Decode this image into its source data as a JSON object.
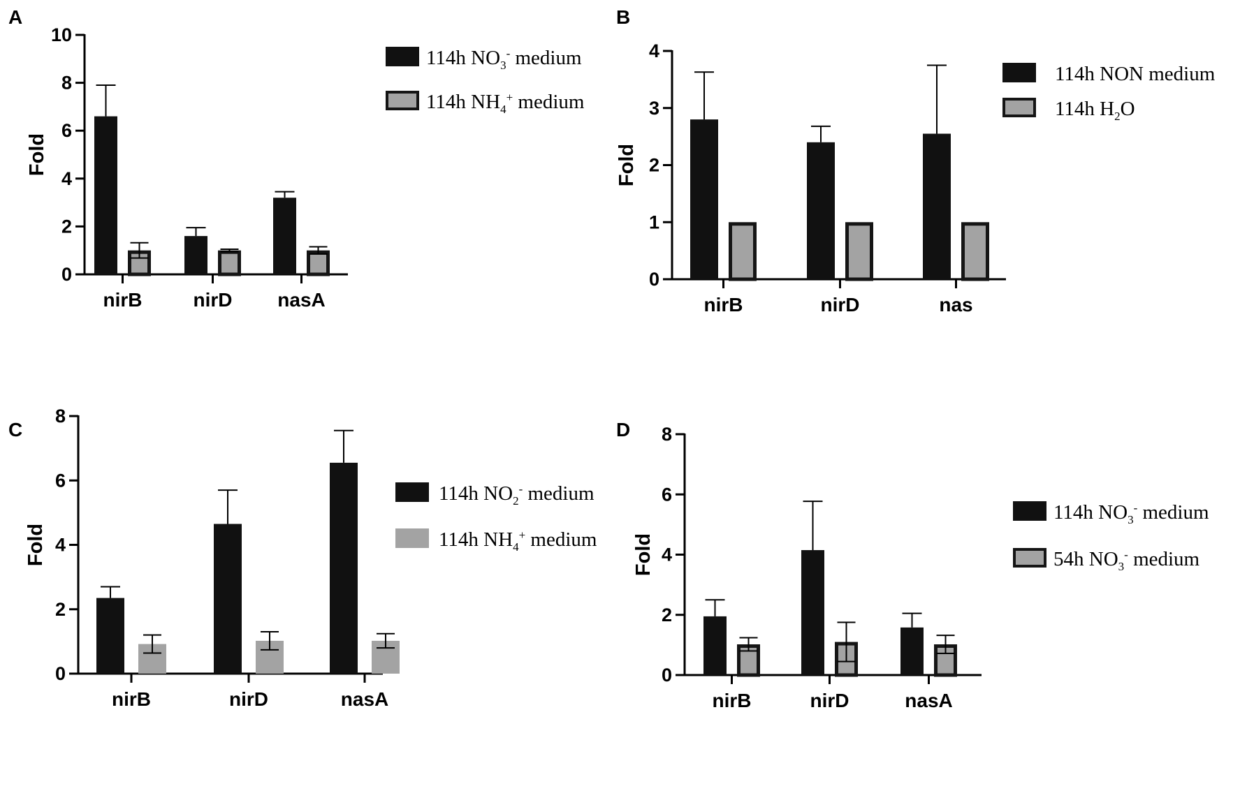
{
  "chart_data": [
    {
      "panel": "A",
      "type": "bar",
      "ylabel": "Fold",
      "ylim": [
        0,
        10
      ],
      "yticks": [
        0,
        2,
        4,
        6,
        8,
        10
      ],
      "categories": [
        "nirB",
        "nirD",
        "nasA"
      ],
      "series": [
        {
          "name": "114h NO3- medium",
          "legend": {
            "pre": "114h NO",
            "sub": "3",
            "sup": "-",
            "post": " medium"
          },
          "style": "black",
          "values": [
            6.6,
            1.6,
            3.2
          ],
          "errors": [
            1.3,
            0.35,
            0.25
          ]
        },
        {
          "name": "114h NH4+ medium",
          "legend": {
            "pre": "114h NH",
            "sub": "4",
            "sup": "+",
            "post": " medium"
          },
          "style": "gray-outlined",
          "values": [
            1.0,
            1.0,
            1.0
          ],
          "errors": [
            0.32,
            0.05,
            0.15
          ]
        }
      ]
    },
    {
      "panel": "B",
      "type": "bar",
      "ylabel": "Fold",
      "ylim": [
        0,
        4
      ],
      "yticks": [
        0,
        1,
        2,
        3,
        4
      ],
      "categories": [
        "nirB",
        "nirD",
        "nas"
      ],
      "series": [
        {
          "name": "114h NON medium",
          "legend": {
            "pre": "114h NON  medium",
            "sub": "",
            "sup": "",
            "post": ""
          },
          "style": "black",
          "values": [
            2.8,
            2.4,
            2.55
          ],
          "errors": [
            0.83,
            0.28,
            1.2
          ]
        },
        {
          "name": "114h H2O",
          "legend": {
            "pre": "114h H",
            "sub": "2",
            "sup": "",
            "post": "O"
          },
          "style": "gray-outlined",
          "values": [
            1.0,
            1.0,
            1.0
          ],
          "errors": [
            0,
            0,
            0
          ]
        }
      ]
    },
    {
      "panel": "C",
      "type": "bar",
      "ylabel": "Fold",
      "ylim": [
        0,
        8
      ],
      "yticks": [
        0,
        2,
        4,
        6,
        8
      ],
      "categories": [
        "nirB",
        "nirD",
        "nasA"
      ],
      "series": [
        {
          "name": "114h NO2- medium",
          "legend": {
            "pre": "114h NO",
            "sub": "2",
            "sup": "-",
            "post": " medium"
          },
          "style": "black",
          "values": [
            2.35,
            4.65,
            6.55
          ],
          "errors": [
            0.35,
            1.05,
            1.0
          ]
        },
        {
          "name": "114h NH4+ medium",
          "legend": {
            "pre": "114h NH",
            "sub": "4",
            "sup": "+",
            "post": " medium"
          },
          "style": "gray-plain",
          "values": [
            0.92,
            1.02,
            1.02
          ],
          "errors": [
            0.28,
            0.28,
            0.22
          ]
        }
      ]
    },
    {
      "panel": "D",
      "type": "bar",
      "ylabel": "Fold",
      "ylim": [
        0,
        8
      ],
      "yticks": [
        0,
        2,
        4,
        6,
        8
      ],
      "categories": [
        "nirB",
        "nirD",
        "nasA"
      ],
      "series": [
        {
          "name": "114h NO3- medium",
          "legend": {
            "pre": "114h NO",
            "sub": "3",
            "sup": "-",
            "post": " medium"
          },
          "style": "black",
          "values": [
            1.95,
            4.15,
            1.58
          ],
          "errors": [
            0.55,
            1.62,
            0.47
          ]
        },
        {
          "name": "54h NO3- medium",
          "legend": {
            "pre": "54h NO",
            "sub": "3",
            "sup": "-",
            "post": " medium"
          },
          "style": "gray-outlined",
          "values": [
            1.02,
            1.1,
            1.02
          ],
          "errors": [
            0.22,
            0.65,
            0.3
          ]
        }
      ]
    }
  ],
  "colors": {
    "black_bar": "#111111",
    "gray_bar": "#a3a3a3",
    "outline": "#151515"
  }
}
